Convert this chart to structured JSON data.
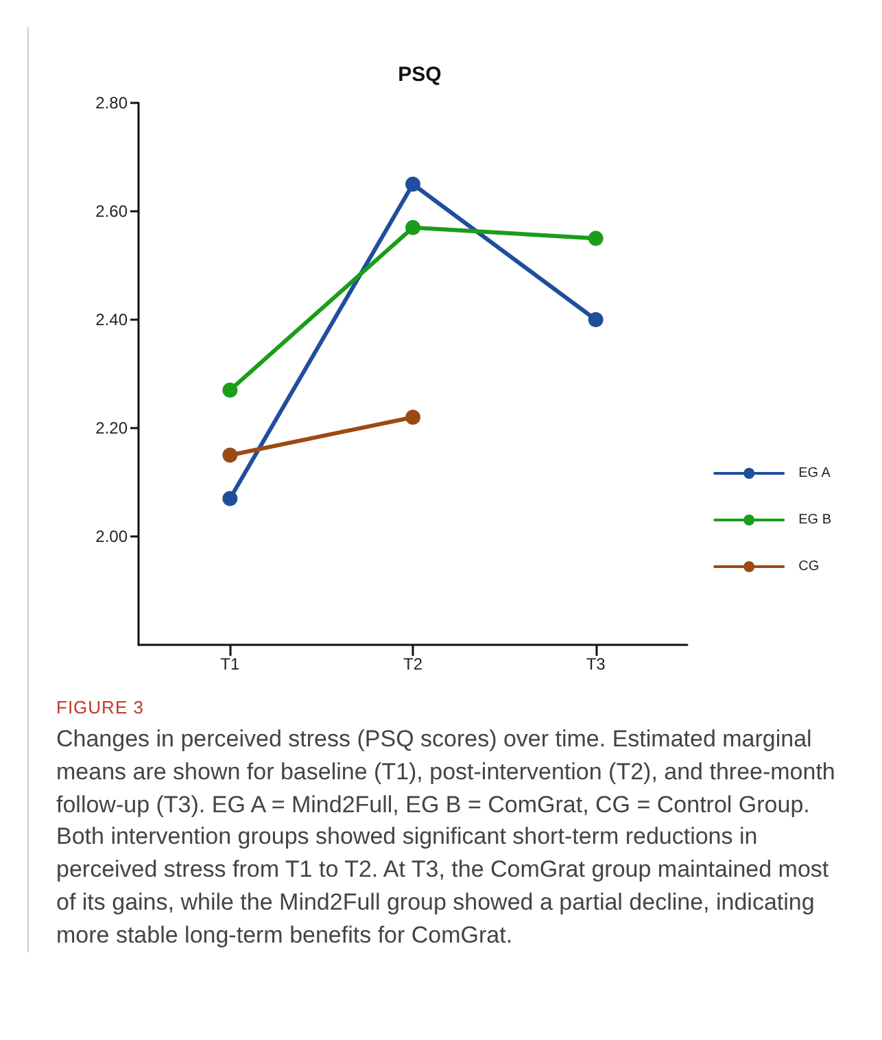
{
  "chart_data": {
    "type": "line",
    "title": "PSQ",
    "categories": [
      "T1",
      "T2",
      "T3"
    ],
    "series": [
      {
        "name": "EG A",
        "color": "#1f4e9c",
        "values": [
          2.07,
          2.65,
          2.4
        ]
      },
      {
        "name": "EG B",
        "color": "#1a9e1a",
        "values": [
          2.27,
          2.57,
          2.55
        ]
      },
      {
        "name": "CG",
        "color": "#9c4a12",
        "values": [
          2.15,
          2.22,
          null
        ]
      }
    ],
    "ylim": [
      1.8,
      2.8
    ],
    "yticks": [
      {
        "value": 2.0,
        "label": "2.00"
      },
      {
        "value": 2.2,
        "label": "2.20"
      },
      {
        "value": 2.4,
        "label": "2.40"
      },
      {
        "value": 2.6,
        "label": "2.60"
      },
      {
        "value": 2.8,
        "label": "2.80"
      }
    ],
    "grid": false,
    "legend": "right",
    "marker": "circle",
    "line_style": "solid",
    "annotations": [
      "FIGURE 3",
      "Changes in perceived stress (PSQ scores) over time. Estimated marginal means are shown for baseline (T1), post-intervention (T2), and three-month follow-up (T3). EG A = Mind2Full, EG B = ComGrat, CG = Control Group. Both intervention groups showed significant short-term reductions in perceived stress from T1 to T2. At T3, the ComGrat group maintained most of its gains, while the Mind2Full group showed a partial decline, indicating more stable long-term benefits for ComGrat."
    ]
  }
}
